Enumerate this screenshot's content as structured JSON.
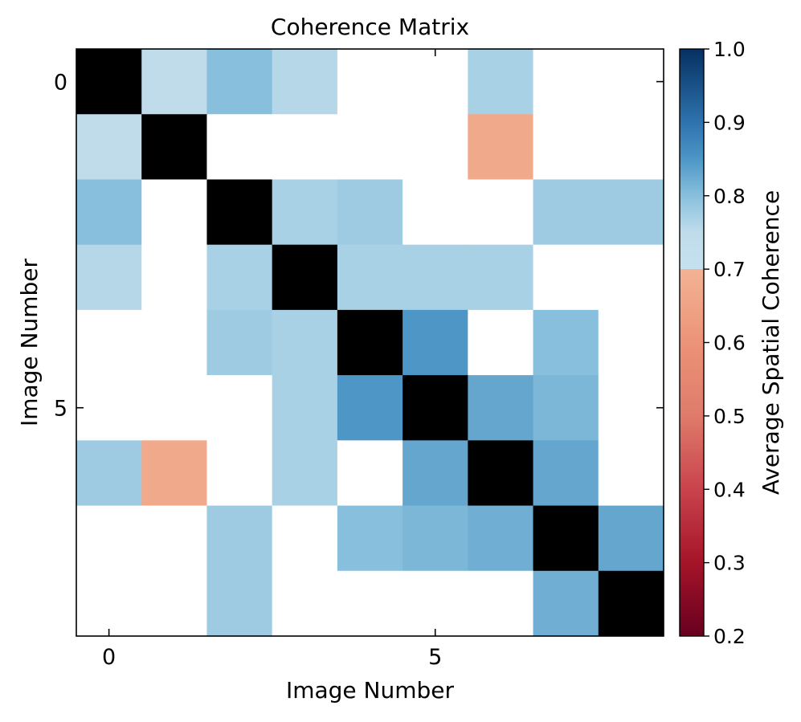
{
  "chart_data": {
    "type": "heatmap",
    "title": "Coherence Matrix",
    "xlabel": "Image Number",
    "ylabel": "Image Number",
    "x_ticks": [
      0,
      5
    ],
    "y_ticks": [
      0,
      5
    ],
    "n": 9,
    "values": [
      [
        null,
        0.75,
        0.8,
        0.76,
        null,
        null,
        0.77,
        null,
        null
      ],
      [
        0.75,
        null,
        null,
        null,
        null,
        null,
        0.67,
        null,
        null
      ],
      [
        0.8,
        null,
        null,
        0.77,
        0.78,
        null,
        null,
        0.78,
        0.78
      ],
      [
        0.76,
        null,
        0.77,
        null,
        0.77,
        0.77,
        0.77,
        null,
        null
      ],
      [
        null,
        null,
        0.78,
        0.77,
        null,
        0.85,
        null,
        0.8,
        null
      ],
      [
        null,
        null,
        null,
        0.77,
        0.85,
        null,
        0.83,
        0.81,
        null
      ],
      [
        0.78,
        0.67,
        null,
        0.77,
        null,
        0.83,
        null,
        0.83,
        null
      ],
      [
        null,
        null,
        0.78,
        null,
        0.8,
        0.81,
        0.82,
        null,
        0.83
      ],
      [
        null,
        null,
        0.78,
        null,
        null,
        null,
        null,
        0.82,
        null
      ]
    ],
    "diagonal_color": "#000000",
    "missing_color": "#ffffff",
    "colorbar": {
      "label": "Average Spatial Coherence",
      "vmin": 0.2,
      "vmax": 1.0,
      "ticks": [
        0.2,
        0.3,
        0.4,
        0.5,
        0.6,
        0.7,
        0.8,
        0.9,
        1.0
      ],
      "tick_labels": [
        "0.2",
        "0.3",
        "0.4",
        "0.5",
        "0.6",
        "0.7",
        "0.8",
        "0.9",
        "1.0"
      ],
      "colormap": "RdBu",
      "split_at": 0.7,
      "colors": [
        {
          "v": 0.2,
          "c": "#67001f"
        },
        {
          "v": 0.3,
          "c": "#a51429"
        },
        {
          "v": 0.4,
          "c": "#c9434c"
        },
        {
          "v": 0.5,
          "c": "#df7b6b"
        },
        {
          "v": 0.6,
          "c": "#ec9378"
        },
        {
          "v": 0.7,
          "c": "#f3b394"
        },
        {
          "v": 0.7001,
          "c": "#c6e0ee"
        },
        {
          "v": 0.75,
          "c": "#c0dcea"
        },
        {
          "v": 0.77,
          "c": "#a9d1e5"
        },
        {
          "v": 0.8,
          "c": "#88bfdc"
        },
        {
          "v": 0.85,
          "c": "#4d96c6"
        },
        {
          "v": 0.9,
          "c": "#2f73ae"
        },
        {
          "v": 1.0,
          "c": "#053061"
        }
      ]
    }
  }
}
